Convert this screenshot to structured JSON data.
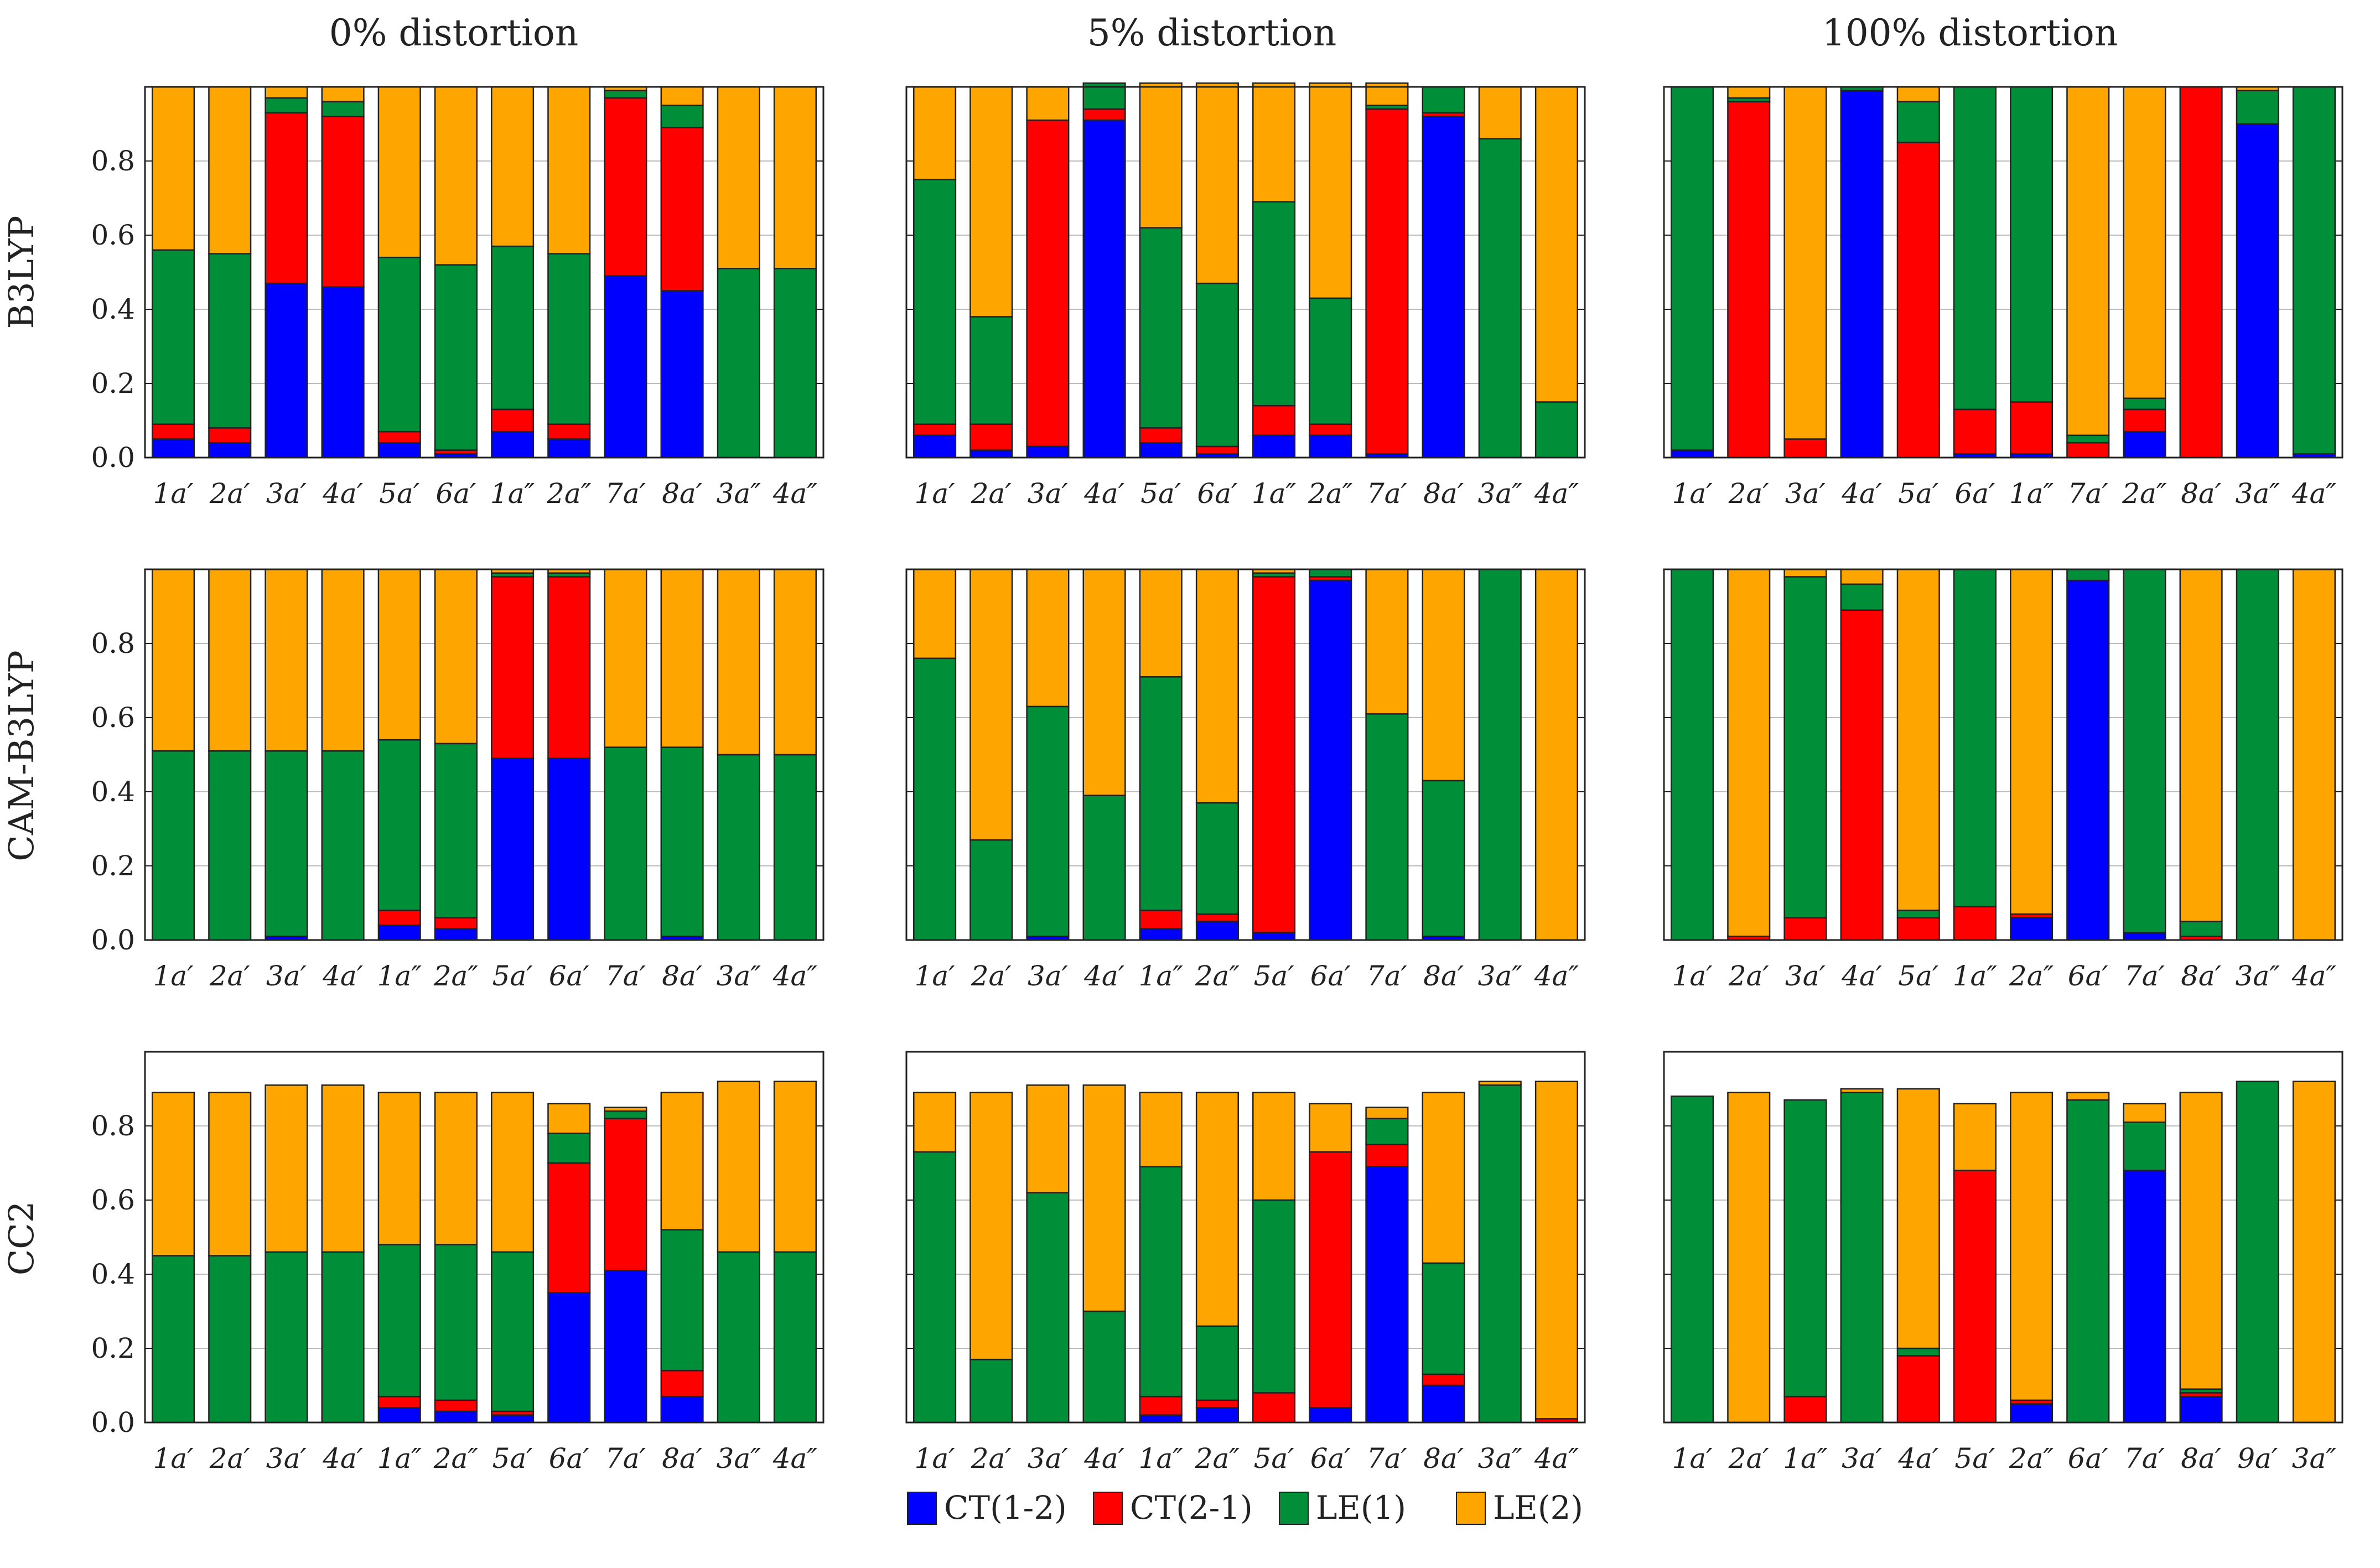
{
  "column_titles": [
    "0% distortion",
    "5% distortion",
    "100% distortion"
  ],
  "row_labels": [
    "B3LYP",
    "CAM-B3LYP",
    "CC2"
  ],
  "legend": [
    {
      "label": "CT(1-2)",
      "color": "#0000ff"
    },
    {
      "label": "CT(2-1)",
      "color": "#ff0000"
    },
    {
      "label": "LE(1)",
      "color": "#008f39"
    },
    {
      "label": "LE(2)",
      "color": "#ffa500"
    }
  ],
  "chart_data": [
    {
      "type": "bar",
      "stacked": true,
      "method": "B3LYP",
      "distortion": "0% distortion",
      "ylim": [
        0,
        1
      ],
      "yticks": [
        "0.0",
        "0.2",
        "0.4",
        "0.6",
        "0.8"
      ],
      "categories": [
        "1a′",
        "2a′",
        "3a′",
        "4a′",
        "5a′",
        "6a′",
        "1a″",
        "2a″",
        "7a′",
        "8a′",
        "3a″",
        "4a″"
      ],
      "series": [
        {
          "name": "CT(1-2)",
          "values": [
            0.05,
            0.04,
            0.47,
            0.46,
            0.04,
            0.01,
            0.07,
            0.05,
            0.49,
            0.45,
            0.0,
            0.0
          ]
        },
        {
          "name": "CT(2-1)",
          "values": [
            0.04,
            0.04,
            0.46,
            0.46,
            0.03,
            0.01,
            0.06,
            0.04,
            0.48,
            0.44,
            0.0,
            0.0
          ]
        },
        {
          "name": "LE(1)",
          "values": [
            0.47,
            0.47,
            0.04,
            0.04,
            0.47,
            0.5,
            0.44,
            0.46,
            0.02,
            0.06,
            0.51,
            0.51
          ]
        },
        {
          "name": "LE(2)",
          "values": [
            0.44,
            0.45,
            0.03,
            0.04,
            0.46,
            0.48,
            0.43,
            0.45,
            0.01,
            0.05,
            0.49,
            0.49
          ]
        }
      ]
    },
    {
      "type": "bar",
      "stacked": true,
      "method": "B3LYP",
      "distortion": "5% distortion",
      "ylim": [
        0,
        1
      ],
      "yticks": [
        "0.0",
        "0.2",
        "0.4",
        "0.6",
        "0.8"
      ],
      "categories": [
        "1a′",
        "2a′",
        "3a′",
        "4a′",
        "5a′",
        "6a′",
        "1a″",
        "2a″",
        "7a′",
        "8a′",
        "3a″",
        "4a″"
      ],
      "series": [
        {
          "name": "CT(1-2)",
          "values": [
            0.06,
            0.02,
            0.03,
            0.91,
            0.04,
            0.01,
            0.06,
            0.06,
            0.01,
            0.92,
            0.0,
            0.0
          ]
        },
        {
          "name": "CT(2-1)",
          "values": [
            0.03,
            0.07,
            0.88,
            0.03,
            0.04,
            0.02,
            0.08,
            0.03,
            0.93,
            0.01,
            0.0,
            0.0
          ]
        },
        {
          "name": "LE(1)",
          "values": [
            0.66,
            0.29,
            0.0,
            0.07,
            0.54,
            0.44,
            0.55,
            0.34,
            0.01,
            0.07,
            0.86,
            0.15
          ]
        },
        {
          "name": "LE(2)",
          "values": [
            0.25,
            0.62,
            0.09,
            0.0,
            0.39,
            0.54,
            0.32,
            0.58,
            0.06,
            0.0,
            0.14,
            0.85
          ]
        }
      ]
    },
    {
      "type": "bar",
      "stacked": true,
      "method": "B3LYP",
      "distortion": "100% distortion",
      "ylim": [
        0,
        1
      ],
      "yticks": [
        "0.0",
        "0.2",
        "0.4",
        "0.6",
        "0.8"
      ],
      "categories": [
        "1a′",
        "2a′",
        "3a′",
        "4a′",
        "5a′",
        "6a′",
        "1a″",
        "7a′",
        "2a″",
        "8a′",
        "3a″",
        "4a″"
      ],
      "series": [
        {
          "name": "CT(1-2)",
          "values": [
            0.02,
            0.0,
            0.0,
            0.99,
            0.0,
            0.01,
            0.01,
            0.0,
            0.07,
            0.0,
            0.9,
            0.01
          ]
        },
        {
          "name": "CT(2-1)",
          "values": [
            0.0,
            0.96,
            0.05,
            0.0,
            0.85,
            0.12,
            0.14,
            0.04,
            0.06,
            1.0,
            0.0,
            0.0
          ]
        },
        {
          "name": "LE(1)",
          "values": [
            0.98,
            0.01,
            0.0,
            0.01,
            0.11,
            0.87,
            0.85,
            0.02,
            0.03,
            0.0,
            0.09,
            0.99
          ]
        },
        {
          "name": "LE(2)",
          "values": [
            0.0,
            0.03,
            0.95,
            0.0,
            0.04,
            0.0,
            0.0,
            0.94,
            0.84,
            0.0,
            0.01,
            0.0
          ]
        }
      ]
    },
    {
      "type": "bar",
      "stacked": true,
      "method": "CAM-B3LYP",
      "distortion": "0% distortion",
      "ylim": [
        0,
        1
      ],
      "yticks": [
        "0.0",
        "0.2",
        "0.4",
        "0.6",
        "0.8"
      ],
      "categories": [
        "1a′",
        "2a′",
        "3a′",
        "4a′",
        "1a″",
        "2a″",
        "5a′",
        "6a′",
        "7a′",
        "8a′",
        "3a″",
        "4a″"
      ],
      "series": [
        {
          "name": "CT(1-2)",
          "values": [
            0.0,
            0.0,
            0.01,
            0.0,
            0.04,
            0.03,
            0.49,
            0.49,
            0.0,
            0.01,
            0.0,
            0.0
          ]
        },
        {
          "name": "CT(2-1)",
          "values": [
            0.0,
            0.0,
            0.0,
            0.0,
            0.04,
            0.03,
            0.49,
            0.49,
            0.0,
            0.0,
            0.0,
            0.0
          ]
        },
        {
          "name": "LE(1)",
          "values": [
            0.51,
            0.51,
            0.5,
            0.51,
            0.46,
            0.47,
            0.01,
            0.01,
            0.52,
            0.51,
            0.5,
            0.5
          ]
        },
        {
          "name": "LE(2)",
          "values": [
            0.49,
            0.49,
            0.49,
            0.49,
            0.46,
            0.47,
            0.01,
            0.01,
            0.48,
            0.48,
            0.5,
            0.5
          ]
        }
      ]
    },
    {
      "type": "bar",
      "stacked": true,
      "method": "CAM-B3LYP",
      "distortion": "5% distortion",
      "ylim": [
        0,
        1
      ],
      "yticks": [
        "0.0",
        "0.2",
        "0.4",
        "0.6",
        "0.8"
      ],
      "categories": [
        "1a′",
        "2a′",
        "3a′",
        "4a′",
        "1a″",
        "2a″",
        "5a′",
        "6a′",
        "7a′",
        "8a′",
        "3a″",
        "4a″"
      ],
      "series": [
        {
          "name": "CT(1-2)",
          "values": [
            0.0,
            0.0,
            0.01,
            0.0,
            0.03,
            0.05,
            0.02,
            0.97,
            0.0,
            0.01,
            0.0,
            0.0
          ]
        },
        {
          "name": "CT(2-1)",
          "values": [
            0.0,
            0.0,
            0.0,
            0.0,
            0.05,
            0.02,
            0.96,
            0.01,
            0.0,
            0.0,
            0.0,
            0.0
          ]
        },
        {
          "name": "LE(1)",
          "values": [
            0.76,
            0.27,
            0.62,
            0.39,
            0.63,
            0.3,
            0.01,
            0.02,
            0.61,
            0.42,
            1.0,
            0.0
          ]
        },
        {
          "name": "LE(2)",
          "values": [
            0.24,
            0.73,
            0.37,
            0.61,
            0.29,
            0.63,
            0.01,
            0.0,
            0.39,
            0.57,
            0.0,
            1.0
          ]
        }
      ]
    },
    {
      "type": "bar",
      "stacked": true,
      "method": "CAM-B3LYP",
      "distortion": "100% distortion",
      "ylim": [
        0,
        1
      ],
      "yticks": [
        "0.0",
        "0.2",
        "0.4",
        "0.6",
        "0.8"
      ],
      "categories": [
        "1a′",
        "2a′",
        "3a′",
        "4a′",
        "5a′",
        "1a″",
        "2a″",
        "6a′",
        "7a′",
        "8a′",
        "3a″",
        "4a″"
      ],
      "series": [
        {
          "name": "CT(1-2)",
          "values": [
            0.0,
            0.0,
            0.0,
            0.0,
            0.0,
            0.0,
            0.06,
            0.97,
            0.02,
            0.0,
            0.0,
            0.0
          ]
        },
        {
          "name": "CT(2-1)",
          "values": [
            0.0,
            0.01,
            0.06,
            0.89,
            0.06,
            0.09,
            0.01,
            0.0,
            0.0,
            0.01,
            0.0,
            0.0
          ]
        },
        {
          "name": "LE(1)",
          "values": [
            1.0,
            0.0,
            0.92,
            0.07,
            0.02,
            0.91,
            0.0,
            0.03,
            0.98,
            0.04,
            1.0,
            0.0
          ]
        },
        {
          "name": "LE(2)",
          "values": [
            0.0,
            0.99,
            0.02,
            0.04,
            0.92,
            0.0,
            0.93,
            0.0,
            0.0,
            0.95,
            0.0,
            1.0
          ]
        }
      ]
    },
    {
      "type": "bar",
      "stacked": true,
      "method": "CC2",
      "distortion": "0% distortion",
      "ylim": [
        0,
        1
      ],
      "yticks": [
        "0.0",
        "0.2",
        "0.4",
        "0.6",
        "0.8"
      ],
      "categories": [
        "1a′",
        "2a′",
        "3a′",
        "4a′",
        "1a″",
        "2a″",
        "5a′",
        "6a′",
        "7a′",
        "8a′",
        "3a″",
        "4a″"
      ],
      "series": [
        {
          "name": "CT(1-2)",
          "values": [
            0.0,
            0.0,
            0.0,
            0.0,
            0.04,
            0.03,
            0.02,
            0.35,
            0.41,
            0.07,
            0.0,
            0.0
          ]
        },
        {
          "name": "CT(2-1)",
          "values": [
            0.0,
            0.0,
            0.0,
            0.0,
            0.03,
            0.03,
            0.01,
            0.35,
            0.41,
            0.07,
            0.0,
            0.0
          ]
        },
        {
          "name": "LE(1)",
          "values": [
            0.45,
            0.45,
            0.46,
            0.46,
            0.41,
            0.42,
            0.43,
            0.08,
            0.02,
            0.38,
            0.46,
            0.46
          ]
        },
        {
          "name": "LE(2)",
          "values": [
            0.44,
            0.44,
            0.45,
            0.45,
            0.41,
            0.41,
            0.43,
            0.08,
            0.01,
            0.37,
            0.46,
            0.46
          ]
        }
      ]
    },
    {
      "type": "bar",
      "stacked": true,
      "method": "CC2",
      "distortion": "5% distortion",
      "ylim": [
        0,
        1
      ],
      "yticks": [
        "0.0",
        "0.2",
        "0.4",
        "0.6",
        "0.8"
      ],
      "categories": [
        "1a′",
        "2a′",
        "3a′",
        "4a′",
        "1a″",
        "2a″",
        "5a′",
        "6a′",
        "7a′",
        "8a′",
        "3a″",
        "4a″"
      ],
      "series": [
        {
          "name": "CT(1-2)",
          "values": [
            0.0,
            0.0,
            0.0,
            0.0,
            0.02,
            0.04,
            0.0,
            0.04,
            0.69,
            0.1,
            0.0,
            0.0
          ]
        },
        {
          "name": "CT(2-1)",
          "values": [
            0.0,
            0.0,
            0.0,
            0.0,
            0.05,
            0.02,
            0.08,
            0.69,
            0.06,
            0.03,
            0.0,
            0.01
          ]
        },
        {
          "name": "LE(1)",
          "values": [
            0.73,
            0.17,
            0.62,
            0.3,
            0.62,
            0.2,
            0.52,
            0.0,
            0.07,
            0.3,
            0.91,
            0.0
          ]
        },
        {
          "name": "LE(2)",
          "values": [
            0.16,
            0.72,
            0.29,
            0.61,
            0.2,
            0.63,
            0.29,
            0.13,
            0.03,
            0.46,
            0.01,
            0.91
          ]
        }
      ]
    },
    {
      "type": "bar",
      "stacked": true,
      "method": "CC2",
      "distortion": "100% distortion",
      "ylim": [
        0,
        1
      ],
      "yticks": [
        "0.0",
        "0.2",
        "0.4",
        "0.6",
        "0.8"
      ],
      "categories": [
        "1a′",
        "2a′",
        "1a″",
        "3a′",
        "4a′",
        "5a′",
        "2a″",
        "6a′",
        "7a′",
        "8a′",
        "9a′",
        "3a″"
      ],
      "series": [
        {
          "name": "CT(1-2)",
          "values": [
            0.0,
            0.0,
            0.0,
            0.0,
            0.0,
            0.0,
            0.05,
            0.0,
            0.68,
            0.07,
            0.0,
            0.0
          ]
        },
        {
          "name": "CT(2-1)",
          "values": [
            0.0,
            0.0,
            0.07,
            0.0,
            0.18,
            0.68,
            0.01,
            0.0,
            0.0,
            0.01,
            0.0,
            0.0
          ]
        },
        {
          "name": "LE(1)",
          "values": [
            0.88,
            0.0,
            0.8,
            0.89,
            0.02,
            0.0,
            0.0,
            0.87,
            0.13,
            0.01,
            0.92,
            0.0
          ]
        },
        {
          "name": "LE(2)",
          "values": [
            0.0,
            0.89,
            0.0,
            0.01,
            0.7,
            0.18,
            0.83,
            0.02,
            0.05,
            0.8,
            0.0,
            0.92
          ]
        }
      ]
    }
  ]
}
